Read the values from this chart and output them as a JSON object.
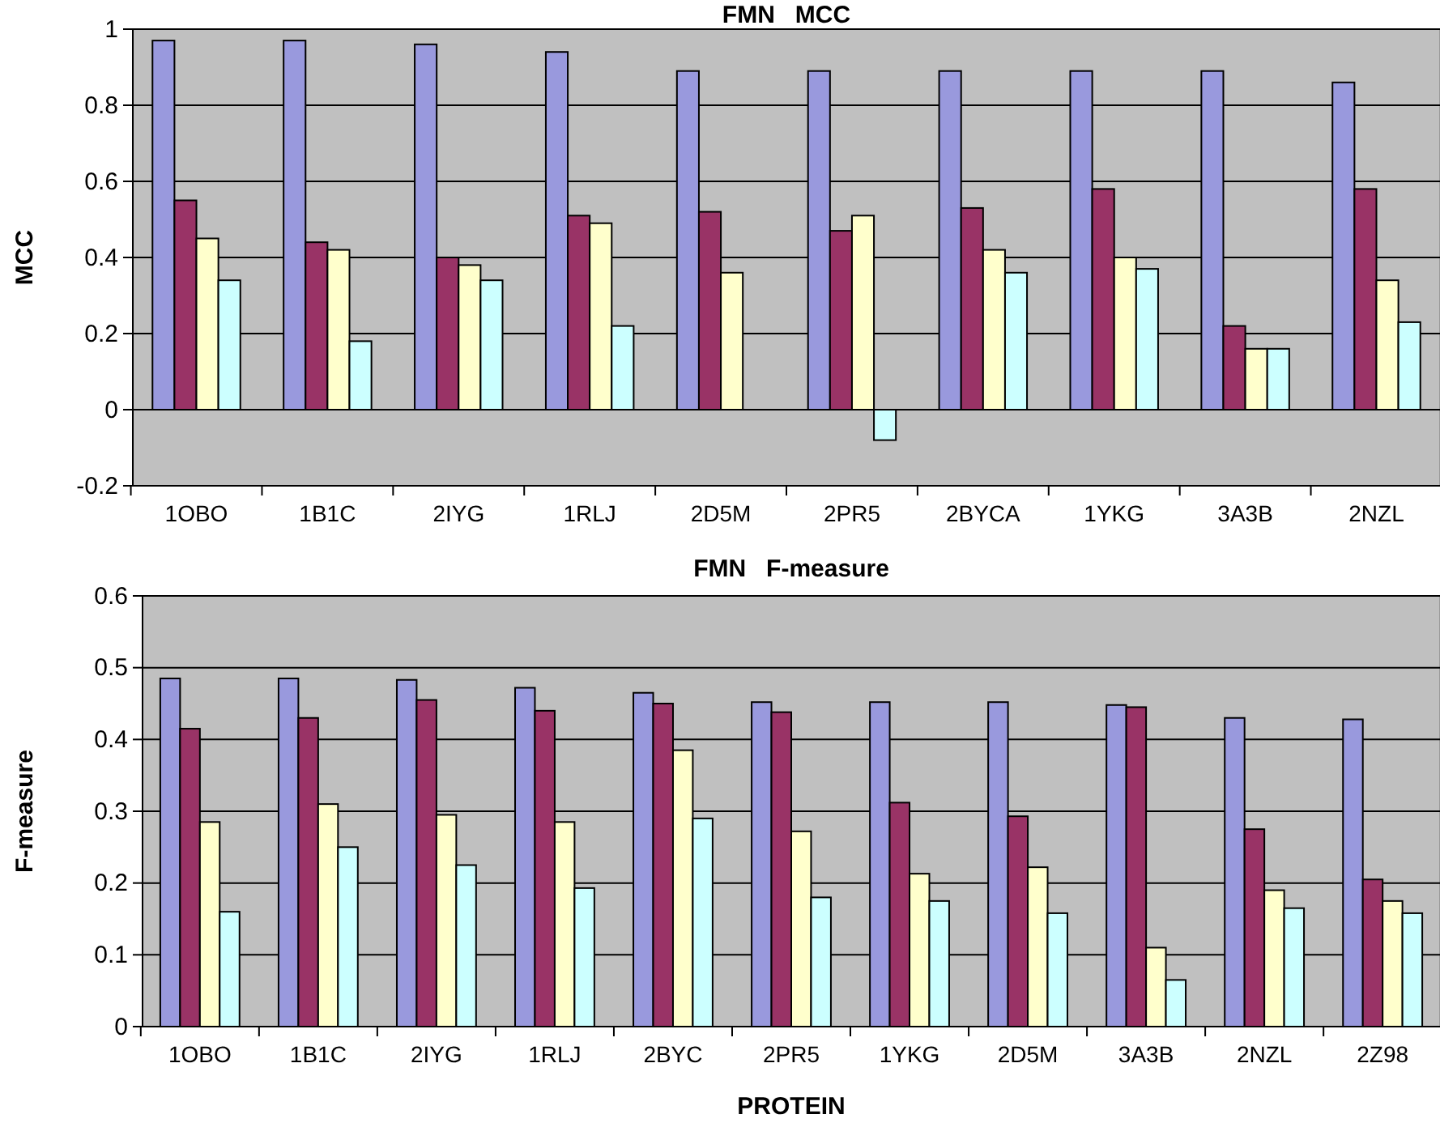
{
  "chart_data": [
    {
      "type": "bar",
      "title": "FMN   MCC",
      "ylabel": "MCC",
      "categories": [
        "1OBO",
        "1B1C",
        "2IYG",
        "1RLJ",
        "2D5M",
        "2PR5",
        "2BYCA",
        "1YKG",
        "3A3B",
        "2NZL"
      ],
      "series": [
        {
          "color": "#9999dd",
          "values": [
            0.97,
            0.97,
            0.96,
            0.94,
            0.89,
            0.89,
            0.89,
            0.89,
            0.89,
            0.86
          ]
        },
        {
          "color": "#993366",
          "values": [
            0.55,
            0.44,
            0.4,
            0.51,
            0.52,
            0.47,
            0.53,
            0.58,
            0.22,
            0.58
          ]
        },
        {
          "color": "#ffffcc",
          "values": [
            0.45,
            0.42,
            0.38,
            0.49,
            0.36,
            0.51,
            0.42,
            0.4,
            0.16,
            0.34
          ]
        },
        {
          "color": "#ccffff",
          "values": [
            0.34,
            0.18,
            0.34,
            0.22,
            null,
            -0.08,
            0.36,
            0.37,
            0.16,
            0.23
          ]
        }
      ],
      "ylim": [
        -0.2,
        1
      ],
      "yticks": [
        -0.2,
        0,
        0.2,
        0.4,
        0.6,
        0.8,
        1
      ],
      "grid": "y"
    },
    {
      "type": "bar",
      "title": "FMN   F-measure",
      "xlabel": "PROTEIN",
      "ylabel": "F-measure",
      "categories": [
        "1OBO",
        "1B1C",
        "2IYG",
        "1RLJ",
        "2BYC",
        "2PR5",
        "1YKG",
        "2D5M",
        "3A3B",
        "2NZL",
        "2Z98"
      ],
      "series": [
        {
          "color": "#9999dd",
          "values": [
            0.485,
            0.485,
            0.483,
            0.472,
            0.465,
            0.452,
            0.452,
            0.452,
            0.448,
            0.43,
            0.428
          ]
        },
        {
          "color": "#993366",
          "values": [
            0.415,
            0.43,
            0.455,
            0.44,
            0.45,
            0.438,
            0.312,
            0.293,
            0.445,
            0.275,
            0.205
          ]
        },
        {
          "color": "#ffffcc",
          "values": [
            0.285,
            0.31,
            0.295,
            0.285,
            0.385,
            0.272,
            0.213,
            0.222,
            0.11,
            0.19,
            0.175
          ]
        },
        {
          "color": "#ccffff",
          "values": [
            0.16,
            0.25,
            0.225,
            0.193,
            0.29,
            0.18,
            0.175,
            0.158,
            0.065,
            0.165,
            0.158
          ]
        }
      ],
      "ylim": [
        0,
        0.6
      ],
      "yticks": [
        0,
        0.1,
        0.2,
        0.3,
        0.4,
        0.5,
        0.6
      ],
      "grid": "y"
    }
  ]
}
